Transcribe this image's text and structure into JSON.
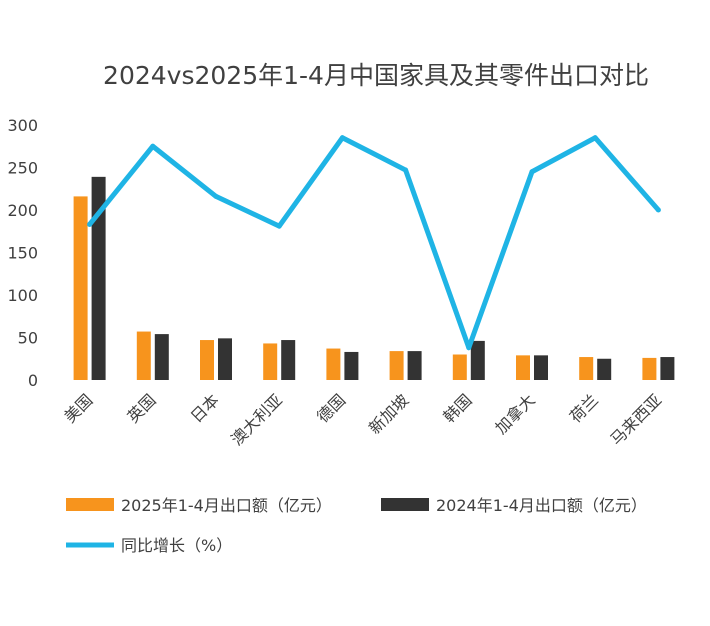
{
  "chart_data": {
    "type": "bar",
    "title": "2024vs2025年1-4月中国家具及其零件出口对比",
    "categories": [
      "美国",
      "英国",
      "日本",
      "澳大利亚",
      "德国",
      "新加坡",
      "韩国",
      "加拿大",
      "荷兰",
      "马来西亚"
    ],
    "series": [
      {
        "name": "2025年1-4月出口额（亿元）",
        "type": "bar",
        "color": "#f7941d",
        "values": [
          216,
          57,
          47,
          43,
          37,
          34,
          30,
          29,
          27,
          26
        ]
      },
      {
        "name": "2024年1-4月出口额（亿元）",
        "type": "bar",
        "color": "#333333",
        "values": [
          239,
          54,
          49,
          47,
          33,
          34,
          46,
          29,
          25,
          27
        ]
      },
      {
        "name": "同比增长（%）",
        "type": "line",
        "color": "#1fb4e5",
        "values": [
          183,
          275,
          216,
          181,
          285,
          247,
          38,
          245,
          285,
          200
        ]
      }
    ],
    "ylim": [
      0,
      300
    ],
    "yticks": [
      "0",
      "50",
      "100",
      "150",
      "200",
      "250",
      "300"
    ],
    "grid": false,
    "legend": "bottom"
  }
}
